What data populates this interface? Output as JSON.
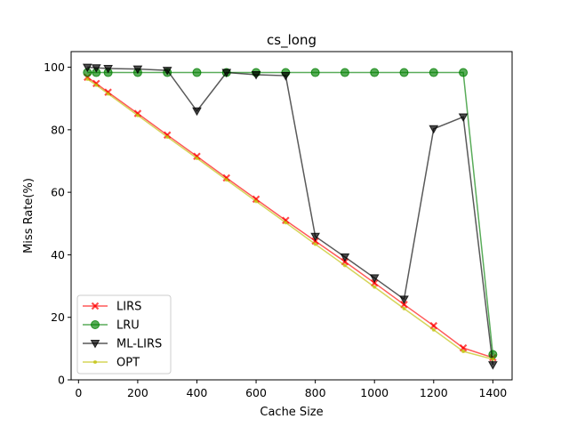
{
  "chart_data": {
    "type": "line",
    "title": "cs_long",
    "xlabel": "Cache Size",
    "ylabel": "Miss Rate(%)",
    "xlim": [
      -25,
      1465
    ],
    "ylim": [
      0,
      105
    ],
    "xticks": [
      0,
      200,
      400,
      600,
      800,
      1000,
      1200,
      1400
    ],
    "yticks": [
      0,
      20,
      40,
      60,
      80,
      100
    ],
    "grid": false,
    "legend_position": "lower-left",
    "series": [
      {
        "name": "LIRS",
        "color": "#ff0000",
        "marker": "x",
        "x": [
          30,
          60,
          100,
          200,
          300,
          400,
          500,
          600,
          700,
          800,
          900,
          1000,
          1100,
          1200,
          1300,
          1400
        ],
        "y": [
          96.8,
          94.8,
          92.0,
          85.2,
          78.3,
          71.5,
          64.6,
          57.8,
          51.0,
          44.4,
          37.8,
          31.0,
          24.1,
          17.3,
          10.2,
          7.1
        ]
      },
      {
        "name": "LRU",
        "color": "#008000",
        "marker": "o",
        "x": [
          30,
          60,
          100,
          200,
          300,
          400,
          500,
          600,
          700,
          800,
          900,
          1000,
          1100,
          1200,
          1300,
          1400
        ],
        "y": [
          98.3,
          98.3,
          98.3,
          98.3,
          98.3,
          98.3,
          98.3,
          98.3,
          98.3,
          98.3,
          98.3,
          98.3,
          98.3,
          98.3,
          98.3,
          8.1
        ]
      },
      {
        "name": "ML-LIRS",
        "color": "#000000",
        "marker": "v",
        "x": [
          30,
          60,
          100,
          200,
          300,
          400,
          500,
          600,
          700,
          800,
          900,
          1000,
          1100,
          1200,
          1300,
          1400
        ],
        "y": [
          100.0,
          99.8,
          99.6,
          99.4,
          99.0,
          86.0,
          98.3,
          97.6,
          97.3,
          45.9,
          39.3,
          32.6,
          25.8,
          80.3,
          84.1,
          4.8
        ]
      },
      {
        "name": "OPT",
        "color": "#bfbf00",
        "marker": ".",
        "x": [
          30,
          60,
          100,
          200,
          300,
          400,
          500,
          600,
          700,
          800,
          900,
          1000,
          1100,
          1200,
          1300,
          1400
        ],
        "y": [
          96.2,
          94.3,
          91.5,
          84.6,
          77.7,
          70.9,
          64.0,
          57.1,
          50.3,
          43.4,
          36.6,
          29.7,
          22.8,
          16.0,
          9.1,
          6.6
        ]
      }
    ]
  }
}
